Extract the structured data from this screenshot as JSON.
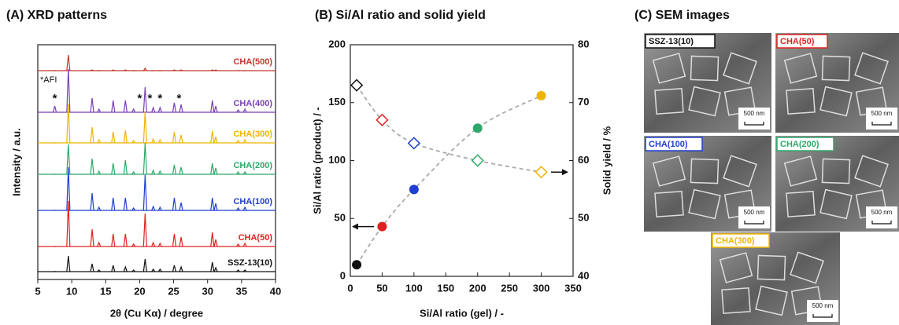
{
  "chart_data": [
    {
      "type": "xrd",
      "title": "(A) XRD patterns",
      "x_label": "2θ (Cu Kα) / degree",
      "y_label": "Intensity / a.u.",
      "x": [
        7.5,
        9.5,
        13.0,
        14.0,
        16.1,
        17.9,
        19.1,
        20.8,
        22.0,
        23.0,
        25.1,
        26.1,
        30.7,
        31.2,
        34.5,
        35.5
      ],
      "xlim": [
        5,
        40
      ],
      "xticks": [
        5,
        10,
        15,
        20,
        25,
        30,
        35,
        40
      ],
      "series": [
        {
          "name": "CHA(500)",
          "color": "#c0392b",
          "values": [
            0,
            20,
            1,
            0,
            1,
            1,
            0,
            3,
            0,
            0,
            1,
            1,
            1,
            1,
            0,
            0
          ]
        },
        {
          "name": "CHA(400)",
          "color": "#7b3fb5",
          "values": [
            8,
            55,
            18,
            4,
            15,
            15,
            4,
            32,
            6,
            6,
            12,
            10,
            15,
            8,
            3,
            4
          ]
        },
        {
          "name": "CHA(300)",
          "color": "#f0b400",
          "values": [
            0,
            50,
            20,
            4,
            14,
            16,
            3,
            40,
            5,
            4,
            14,
            10,
            15,
            8,
            3,
            4
          ]
        },
        {
          "name": "CHA(200)",
          "color": "#2ea86a",
          "values": [
            0,
            38,
            20,
            4,
            14,
            18,
            3,
            40,
            5,
            4,
            12,
            9,
            14,
            8,
            3,
            3
          ]
        },
        {
          "name": "CHA(100)",
          "color": "#1f3fd0",
          "values": [
            0,
            55,
            22,
            4,
            16,
            16,
            3,
            45,
            5,
            4,
            16,
            10,
            16,
            9,
            3,
            4
          ]
        },
        {
          "name": "CHA(50)",
          "color": "#e02020",
          "values": [
            0,
            58,
            22,
            5,
            16,
            16,
            3,
            42,
            5,
            4,
            16,
            12,
            18,
            9,
            3,
            4
          ]
        },
        {
          "name": "SSZ-13(10)",
          "color": "#111111",
          "values": [
            0,
            20,
            10,
            2,
            8,
            6,
            2,
            16,
            3,
            3,
            8,
            6,
            12,
            5,
            2,
            2
          ]
        }
      ],
      "annotation": {
        "label": "*AFI",
        "marker": "*",
        "x": [
          7.5,
          20.0,
          21.5,
          23.0,
          25.8
        ]
      }
    },
    {
      "type": "scatter",
      "title": "(B) Si/Al ratio and solid yield",
      "x_label": "Si/Al ratio (gel) / -",
      "y_label": "Si/Al ratio (product) / -",
      "y2_label": "Solid yield / %",
      "xlim": [
        0,
        350
      ],
      "xticks": [
        0,
        50,
        100,
        150,
        200,
        250,
        300,
        350
      ],
      "ylim": [
        0,
        200
      ],
      "yticks": [
        0,
        50,
        100,
        150,
        200
      ],
      "y2lim": [
        40,
        80
      ],
      "y2ticks": [
        40,
        50,
        60,
        70,
        80
      ],
      "series": [
        {
          "marker": "circle",
          "x": [
            10,
            50,
            100,
            200,
            300
          ],
          "values": [
            10,
            43,
            75,
            128,
            156
          ],
          "colors": [
            "#111111",
            "#e02020",
            "#1f3fd0",
            "#2ea86a",
            "#f0b400"
          ]
        },
        {
          "marker": "diamond-open",
          "axis": "y2",
          "x": [
            10,
            50,
            100,
            200,
            300
          ],
          "values": [
            73,
            67,
            63,
            60,
            58
          ],
          "colors": [
            "#111111",
            "#e02020",
            "#1f3fd0",
            "#2ea86a",
            "#f0b400"
          ]
        }
      ]
    }
  ],
  "sem_images": {
    "title": "(C) SEM images",
    "images": [
      {
        "label": "SSZ-13(10)",
        "color": "#111111",
        "scale": "500 nm"
      },
      {
        "label": "CHA(50)",
        "color": "#e02020",
        "scale": "500 nm"
      },
      {
        "label": "CHA(100)",
        "color": "#1f3fd0",
        "scale": "500 nm"
      },
      {
        "label": "CHA(200)",
        "color": "#2ea86a",
        "scale": "500 nm"
      },
      {
        "label": "CHA(300)",
        "color": "#f0b400",
        "scale": "500 nm"
      }
    ]
  }
}
